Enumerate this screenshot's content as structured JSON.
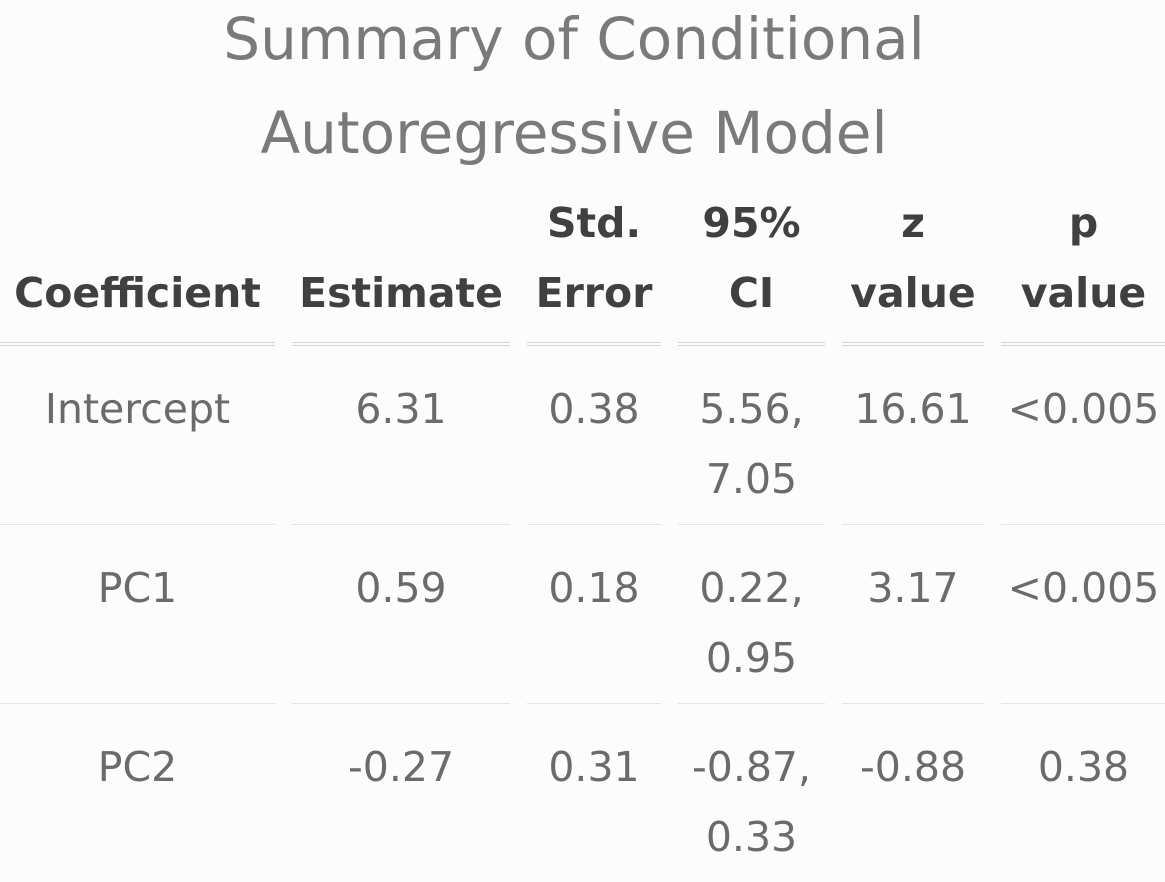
{
  "title": {
    "line1": "Summary of Conditional",
    "line2": "Autoregressive Model"
  },
  "table": {
    "headers": [
      {
        "line1": "",
        "line2": "Coefficient"
      },
      {
        "line1": "",
        "line2": "Estimate"
      },
      {
        "line1": "Std.",
        "line2": "Error"
      },
      {
        "line1": "95%",
        "line2": "CI"
      },
      {
        "line1": "z",
        "line2": "value"
      },
      {
        "line1": "p",
        "line2": "value"
      }
    ],
    "rows": [
      {
        "coefficient": "Intercept",
        "estimate": "6.31",
        "std_error": "0.38",
        "ci_low": "5.56,",
        "ci_high": "7.05",
        "z_value": "16.61",
        "p_value": "<0.005"
      },
      {
        "coefficient": "PC1",
        "estimate": "0.59",
        "std_error": "0.18",
        "ci_low": "0.22,",
        "ci_high": "0.95",
        "z_value": "3.17",
        "p_value": "<0.005"
      },
      {
        "coefficient": "PC2",
        "estimate": "-0.27",
        "std_error": "0.31",
        "ci_low": "-0.87,",
        "ci_high": "0.33",
        "z_value": "-0.88",
        "p_value": "0.38"
      }
    ]
  }
}
